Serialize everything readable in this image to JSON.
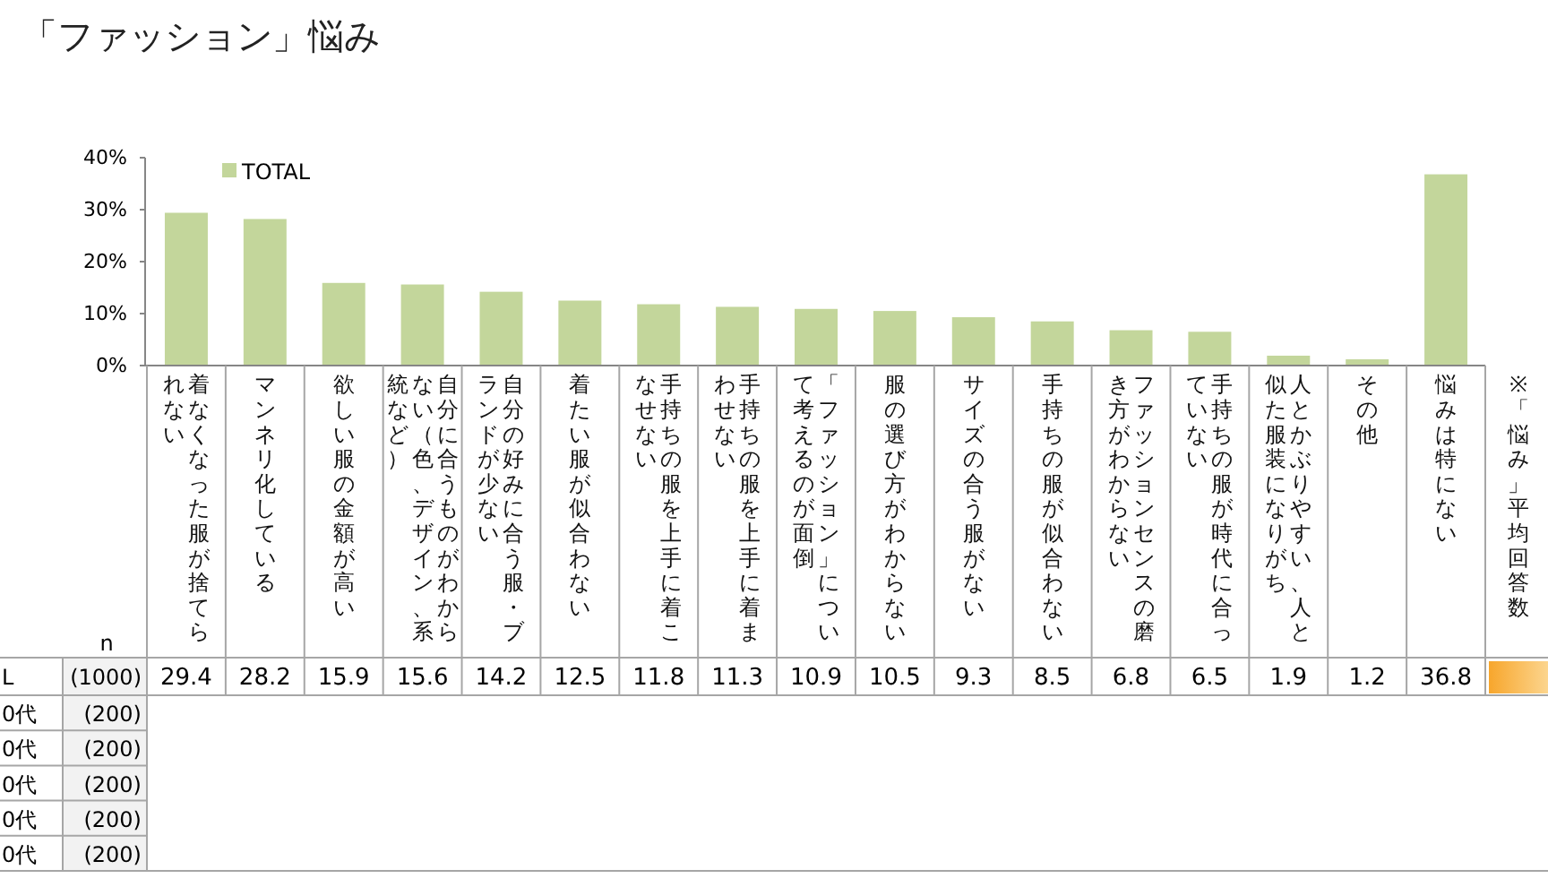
{
  "chart_data": {
    "type": "bar",
    "title": "「ファッション」悩み",
    "categories": [
      "着なくなった服が捨てられない",
      "マンネリ化している",
      "欲しい服の金額が高い",
      "自分に合うものがわからない（色、デザイン、系統など）",
      "自分の好みに合う服・ブランドが少ない",
      "着たい服が似合わない",
      "手持ちの服を上手に着こなせない",
      "手持ちの服を上手に着まわせない",
      "「ファッション」について考えるのが面倒",
      "服の選び方がわからない",
      "サイズの合う服がない",
      "手持ちの服が似合わない",
      "ファッションセンスの磨き方がわからない",
      "手持ちの服が時代に合っていない",
      "人とかぶりやすい、人と似た服装になりがち",
      "その他",
      "悩みは特にない"
    ],
    "series": [
      {
        "name": "TOTAL",
        "color": "#c3d69b",
        "values": [
          29.4,
          28.2,
          15.9,
          15.6,
          14.2,
          12.5,
          11.8,
          11.3,
          10.9,
          10.5,
          9.3,
          8.5,
          6.8,
          6.5,
          1.9,
          1.2,
          36.8
        ]
      }
    ],
    "ylim": [
      0,
      40
    ],
    "yticks": [
      {
        "value": 0,
        "label": "0%"
      },
      {
        "value": 10,
        "label": "10%"
      },
      {
        "value": 20,
        "label": "20%"
      },
      {
        "value": 30,
        "label": "30%"
      },
      {
        "value": 40,
        "label": "40%"
      }
    ],
    "legend": "top left",
    "data_labels": true,
    "annotations": [
      "n",
      "L",
      "(1000)",
      "0代",
      "(200)",
      "0代",
      "(200)",
      "0代",
      "(200)",
      "0代",
      "(200)",
      "0代",
      "(200)",
      "※「悩み」平均回答数"
    ]
  }
}
